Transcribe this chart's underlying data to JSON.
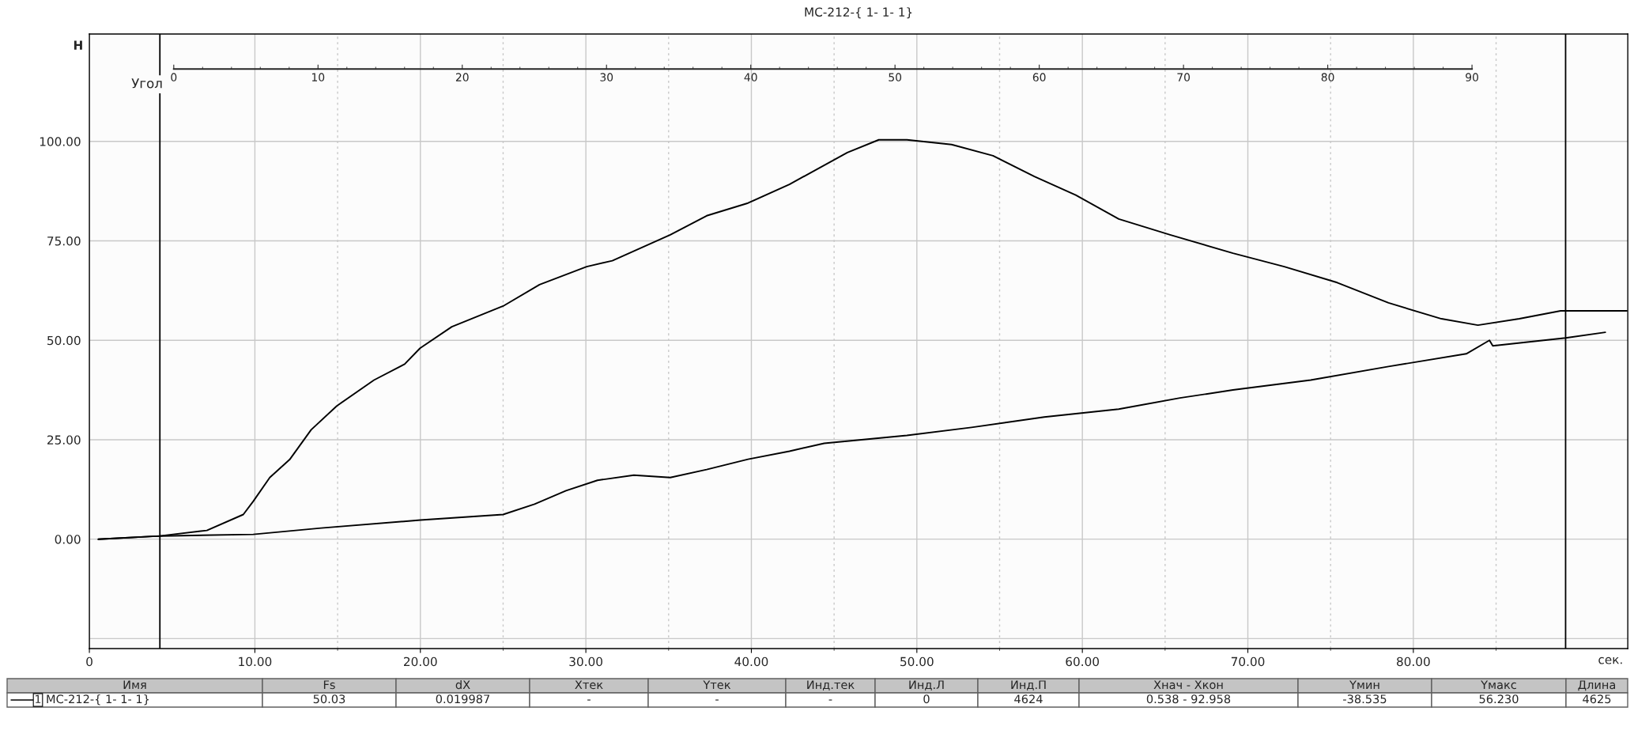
{
  "chart_data": [
    {
      "type": "line",
      "title": "MC-212-{ 1- 1- 1}",
      "xlabel": "сек.",
      "ylabel": "Н",
      "x2label": "Угол",
      "xlim": [
        0,
        92.958
      ],
      "ylim": [
        -27.5,
        127
      ],
      "xticks": [
        {
          "value": 0,
          "label": "0"
        },
        {
          "value": 10,
          "label": "10.00"
        },
        {
          "value": 20,
          "label": "20.00"
        },
        {
          "value": 30,
          "label": "30.00"
        },
        {
          "value": 40,
          "label": "40.00"
        },
        {
          "value": 50,
          "label": "50.00"
        },
        {
          "value": 60,
          "label": "60.00"
        },
        {
          "value": 70,
          "label": "70.00"
        },
        {
          "value": 80,
          "label": "80.00"
        }
      ],
      "yticks": [
        {
          "value": -25,
          "label": null
        },
        {
          "value": 0,
          "label": "0.00"
        },
        {
          "value": 25,
          "label": "25.00"
        },
        {
          "value": 50,
          "label": "50.00"
        },
        {
          "value": 75,
          "label": "75.00"
        },
        {
          "value": 100,
          "label": "100.00"
        }
      ],
      "x2lim": [
        -5.85,
        100.8
      ],
      "x2ticks": [
        0,
        10,
        20,
        30,
        40,
        50,
        60,
        70,
        80,
        90
      ],
      "grid": true,
      "ref_lines": [
        {
          "axis": "x",
          "value": 4.26,
          "color": "#000000"
        },
        {
          "axis": "x",
          "value": 89.2,
          "color": "#000000"
        }
      ],
      "series": [
        {
          "color": "#000000",
          "x": [
            0.54,
            4.26,
            7.1,
            9.3,
            9.9,
            10.9,
            12.1,
            13.4,
            14.95,
            17.2,
            19.05,
            19.98,
            21.9,
            25,
            27.2,
            30.05,
            31.6,
            35.1,
            37.3,
            39.8,
            42.3,
            45.8,
            47.7,
            49.4,
            52.1,
            54.6,
            57.1,
            59.6,
            62.2,
            65.3,
            69.1,
            72.2,
            75.4,
            78.5,
            81.7,
            83.9,
            86.4,
            88.9,
            92.9
          ],
          "values": [
            0,
            0.8,
            2.2,
            6.2,
            9.5,
            15.5,
            20,
            27.5,
            33.5,
            40,
            44,
            48,
            53.4,
            58.6,
            64,
            68.5,
            70,
            76.5,
            81.3,
            84.5,
            89.2,
            97.2,
            100.4,
            100.4,
            99.2,
            96.4,
            91.2,
            86.5,
            80.5,
            76.5,
            71.9,
            68.5,
            64.5,
            59.4,
            55.4,
            53.8,
            55.4,
            57.4,
            57.4
          ]
        },
        {
          "color": "#000000",
          "x": [
            0.54,
            4.26,
            9.9,
            14,
            20,
            25,
            26.9,
            28.8,
            30.7,
            32.9,
            35.1,
            37.3,
            39.8,
            42.3,
            44.4,
            49.4,
            53.3,
            57.7,
            62.2,
            65.9,
            69.1,
            73.8,
            78.5,
            83.2,
            84.6,
            84.8,
            89.2,
            91.6
          ],
          "values": [
            0,
            0.8,
            1.2,
            2.8,
            4.8,
            6.2,
            8.8,
            12.2,
            14.8,
            16.1,
            15.5,
            17.5,
            20.1,
            22.1,
            24.1,
            26.1,
            28.1,
            30.7,
            32.7,
            35.5,
            37.5,
            40,
            43.4,
            46.6,
            50,
            48.6,
            50.6,
            52
          ]
        }
      ]
    },
    {
      "type": "other",
      "annotations": [
        "Имя",
        "Fs",
        "dX",
        "Xтек",
        "Yтек",
        "Инд.тек",
        "Инд.Л",
        "Инд.П",
        "Xнач - Xкон",
        "Yмин",
        "Yмакс",
        "Длина",
        "MC-212-{ 1- 1- 1}",
        "50.03",
        "0.019987",
        "-",
        "-",
        "-",
        "0",
        "4624",
        "0.538 - 92.958",
        "-38.535",
        "56.230",
        "4625",
        "1"
      ]
    }
  ]
}
